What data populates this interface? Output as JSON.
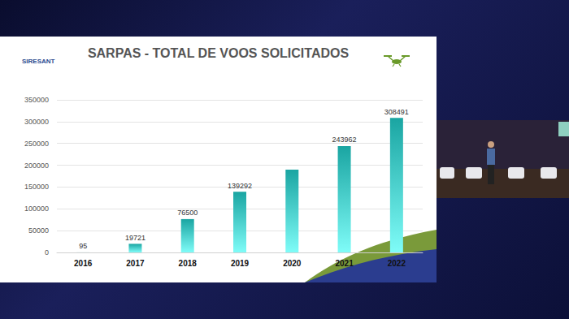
{
  "chart_data": {
    "type": "bar",
    "title": "SARPAS - TOTAL DE VOOS SOLICITADOS",
    "subtitle": "SIRESANT",
    "categories": [
      "2016",
      "2017",
      "2018",
      "2019",
      "2020",
      "2021",
      "2022"
    ],
    "values": [
      95,
      19721,
      76500,
      139292,
      190000,
      243962,
      308491
    ],
    "value_labels": [
      "95",
      "19721",
      "76500",
      "139292",
      null,
      "243962",
      "308491"
    ],
    "color": "#1aa5a2",
    "ylim": [
      0,
      350000
    ],
    "yticks": [
      0,
      50000,
      100000,
      150000,
      200000,
      250000,
      300000,
      350000
    ],
    "grid": true,
    "data_labels": true
  }
}
